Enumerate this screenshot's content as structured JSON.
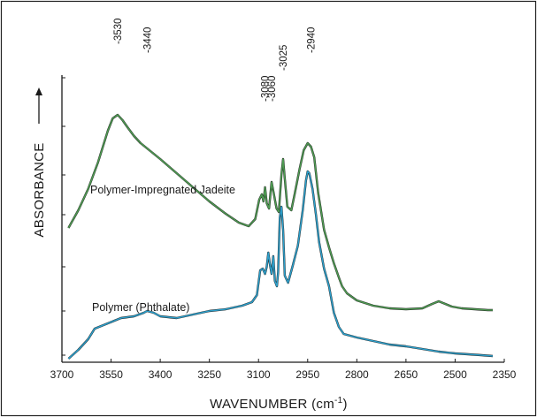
{
  "chart_data": {
    "type": "line",
    "xlabel": "WAVENUMBER (cm",
    "xlabel_sup": "-1",
    "xlabel_close": ")",
    "ylabel": "ABSORBANCE",
    "xlim": [
      3700,
      2350
    ],
    "x_reversed": true,
    "y_scale": "arbitrary (offset traces, no numeric y ticks)",
    "xticks": [
      3700,
      3550,
      3400,
      3250,
      3100,
      2950,
      2800,
      2650,
      2500,
      2350
    ],
    "grid": false,
    "peak_labels": [
      "-3530",
      "-3440",
      "-3080",
      "-3060",
      "-3025",
      "-2940"
    ],
    "peak_positions": [
      3530,
      3440,
      3080,
      3060,
      3025,
      2940
    ],
    "series": [
      {
        "name": "Polymer-Impregnated Jadeite",
        "color": "#4e9a52",
        "x": [
          3680,
          3650,
          3620,
          3590,
          3560,
          3545,
          3530,
          3515,
          3500,
          3480,
          3460,
          3440,
          3400,
          3350,
          3300,
          3250,
          3200,
          3160,
          3130,
          3110,
          3098,
          3090,
          3085,
          3080,
          3075,
          3068,
          3060,
          3052,
          3045,
          3038,
          3030,
          3025,
          3020,
          3012,
          3000,
          2990,
          2975,
          2962,
          2950,
          2940,
          2930,
          2918,
          2900,
          2885,
          2870,
          2855,
          2845,
          2830,
          2800,
          2750,
          2700,
          2650,
          2600,
          2570,
          2550,
          2530,
          2510,
          2480,
          2440,
          2400,
          2385
        ],
        "values": [
          7.6,
          8.6,
          9.8,
          11.3,
          13.1,
          13.8,
          14.0,
          13.7,
          13.3,
          12.8,
          12.4,
          12.1,
          11.5,
          10.7,
          9.9,
          9.1,
          8.4,
          7.9,
          7.7,
          8.1,
          9.2,
          9.5,
          9.1,
          9.9,
          9.0,
          8.7,
          10.2,
          9.4,
          8.7,
          8.5,
          10.6,
          11.5,
          10.4,
          8.8,
          8.6,
          9.5,
          10.9,
          12.0,
          12.4,
          12.2,
          11.6,
          9.6,
          7.5,
          6.5,
          5.6,
          4.8,
          4.3,
          3.9,
          3.5,
          3.2,
          3.05,
          3.0,
          3.05,
          3.3,
          3.45,
          3.3,
          3.15,
          3.05,
          3.0,
          2.95,
          2.95
        ]
      },
      {
        "name": "Polymer (Phthalate)",
        "color": "#2d9ec9",
        "x": [
          3680,
          3650,
          3620,
          3600,
          3560,
          3520,
          3480,
          3450,
          3440,
          3420,
          3400,
          3350,
          3300,
          3250,
          3200,
          3150,
          3120,
          3105,
          3095,
          3087,
          3080,
          3075,
          3070,
          3065,
          3060,
          3055,
          3050,
          3044,
          3040,
          3035,
          3030,
          3025,
          3020,
          3010,
          2995,
          2980,
          2965,
          2955,
          2950,
          2945,
          2935,
          2925,
          2915,
          2900,
          2885,
          2870,
          2855,
          2840,
          2820,
          2800,
          2750,
          2700,
          2650,
          2600,
          2550,
          2500,
          2460,
          2420,
          2385
        ],
        "values": [
          0.2,
          0.7,
          1.3,
          1.9,
          2.2,
          2.5,
          2.6,
          2.8,
          2.9,
          2.8,
          2.6,
          2.5,
          2.7,
          2.9,
          3.0,
          3.2,
          3.4,
          3.8,
          5.2,
          5.3,
          5.0,
          5.4,
          6.2,
          5.5,
          5.0,
          6.0,
          4.6,
          4.3,
          5.1,
          8.2,
          8.8,
          7.5,
          4.9,
          4.5,
          5.5,
          6.6,
          8.6,
          10.3,
          10.8,
          10.7,
          9.8,
          8.4,
          6.8,
          5.3,
          4.3,
          2.8,
          2.0,
          1.6,
          1.5,
          1.4,
          1.2,
          1.0,
          0.9,
          0.75,
          0.6,
          0.5,
          0.45,
          0.4,
          0.35
        ]
      }
    ]
  }
}
